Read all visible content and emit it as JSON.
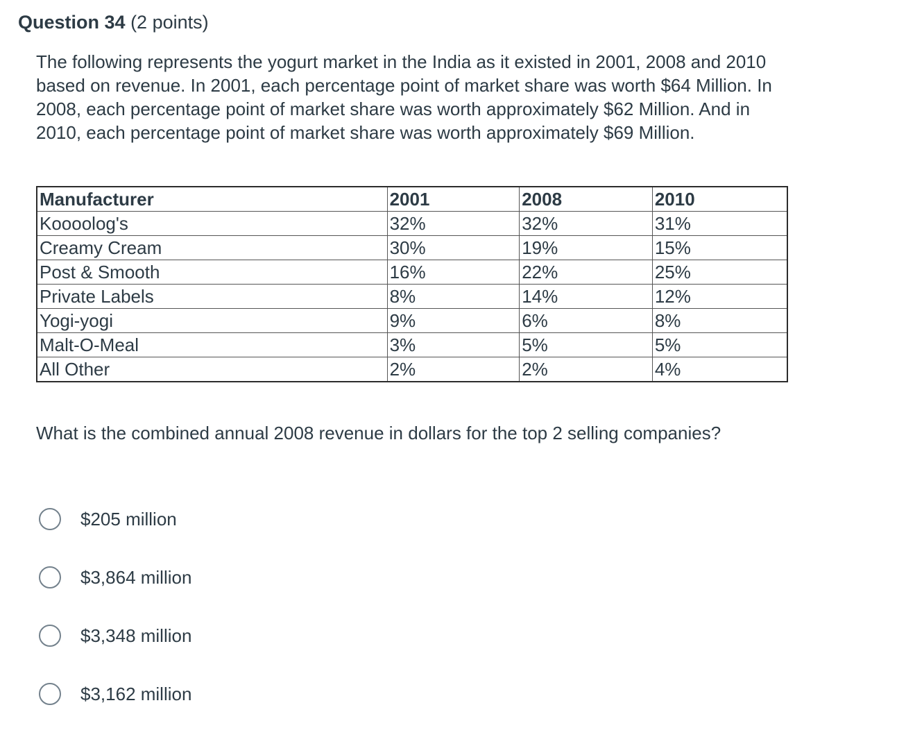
{
  "question": {
    "title": "Question 34",
    "points": "(2 points)",
    "text": "The following represents the yogurt market in the India as it existed in 2001, 2008 and 2010 based on revenue. In 2001, each percentage point of market share was worth $64 Million. In 2008, each percentage point of market share was worth approximately $62 Million. And in 2010, each percentage point of market share was worth approximately $69 Million.",
    "prompt": "What is the combined annual 2008 revenue in dollars for the top 2 selling companies?"
  },
  "table": {
    "headers": [
      "Manufacturer",
      "2001",
      "2008",
      "2010"
    ],
    "rows": [
      [
        "Koooolog's",
        "32%",
        "32%",
        "31%"
      ],
      [
        "Creamy Cream",
        "30%",
        "19%",
        "15%"
      ],
      [
        "Post & Smooth",
        "16%",
        "22%",
        "25%"
      ],
      [
        "Private Labels",
        "8%",
        "14%",
        "12%"
      ],
      [
        "Yogi-yogi",
        "9%",
        "6%",
        "8%"
      ],
      [
        "Malt-O-Meal",
        "3%",
        "5%",
        "5%"
      ],
      [
        "All Other",
        "2%",
        "2%",
        "4%"
      ]
    ]
  },
  "answers": [
    {
      "label": "$205 million"
    },
    {
      "label": "$3,864 million"
    },
    {
      "label": "$3,348 million"
    },
    {
      "label": "$3,162 million"
    }
  ]
}
